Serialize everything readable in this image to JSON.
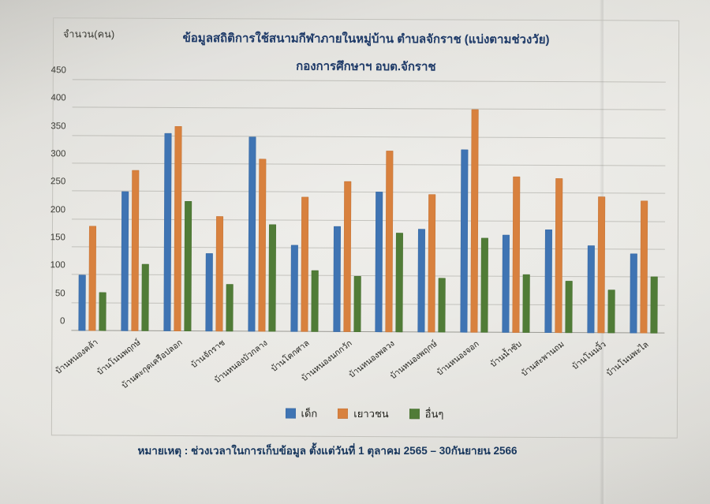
{
  "page": {
    "y_axis_unit_label": "จำนวน(คน)",
    "note": "หมายเหตุ : ช่วงเวลาในการเก็บข้อมูล ตั้งแต่วันที่ 1 ตุลาคม 2565 – 30กันยายน 2566"
  },
  "colors": {
    "series_child_blue": "#3f74b3",
    "series_youth_orange": "#d8813e",
    "series_other_green": "#507c37",
    "title_navy": "#1e3a68",
    "paper": "#e4e3de"
  },
  "chart_data": {
    "type": "bar",
    "title": "ข้อมูลสถิติการใช้สนามกีฬาภายในหมู่บ้าน ตำบลจักราช (แบ่งตามช่วงวัย)",
    "subtitle": "กองการศึกษาฯ อบต.จักราช",
    "ylabel": "จำนวน(คน)",
    "xlabel": "",
    "ylim": [
      0,
      450
    ],
    "ytick_step": 50,
    "yticks": [
      0,
      50,
      100,
      150,
      200,
      250,
      300,
      350,
      400,
      450
    ],
    "grid": true,
    "legend_position": "bottom",
    "categories": [
      "บ้านหนองคล้า",
      "บ้านโนนพฤกษ์",
      "บ้านตะกุดเครือปลอก",
      "บ้านจักราช",
      "บ้านหนองบัวกลาง",
      "บ้านโคกศาล",
      "บ้านหนองนกกวัก",
      "บ้านหนองพลวง",
      "บ้านหนองพฤกษ์",
      "บ้านหนองจอก",
      "บ้านน้ำซับ",
      "บ้านสะพานถม",
      "บ้านโนนงิ้ว",
      "บ้านโนนพะไล"
    ],
    "series": [
      {
        "name": "เด็ก",
        "color": "#3f74b3",
        "values": [
          100,
          250,
          355,
          140,
          350,
          155,
          190,
          252,
          186,
          328,
          175,
          185,
          157,
          143
        ]
      },
      {
        "name": "เยาวชน",
        "color": "#d8813e",
        "values": [
          188,
          288,
          368,
          207,
          310,
          242,
          270,
          325,
          248,
          400,
          280,
          278,
          245,
          238
        ]
      },
      {
        "name": "อื่นๆ",
        "color": "#507c37",
        "values": [
          70,
          120,
          233,
          85,
          192,
          110,
          100,
          178,
          98,
          170,
          105,
          93,
          78,
          102
        ]
      }
    ]
  }
}
